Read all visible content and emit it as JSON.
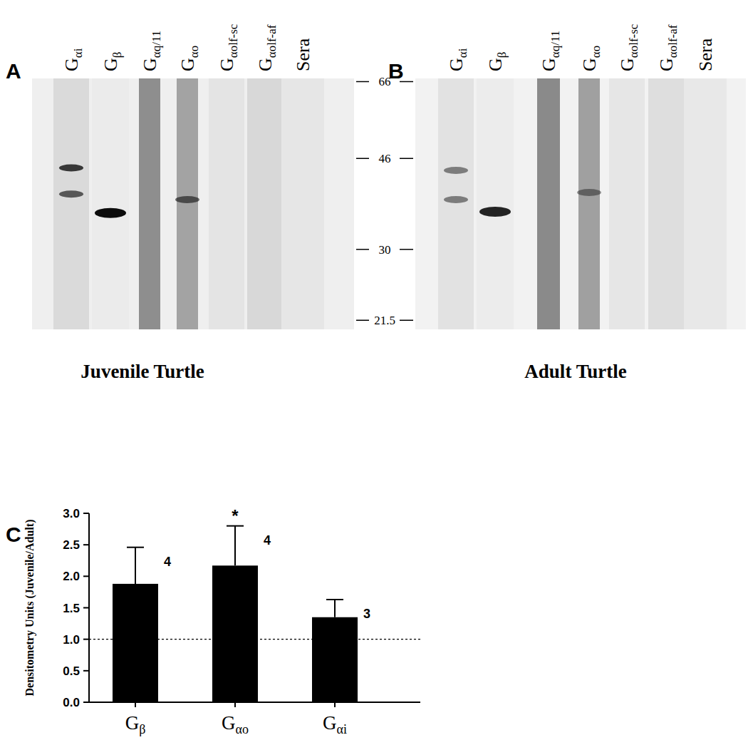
{
  "figure": {
    "markers": [
      66,
      46,
      30,
      21.5
    ],
    "kda_range": [
      67,
      20.6
    ],
    "lanes": [
      {
        "base": "G",
        "sub": "αi"
      },
      {
        "base": "G",
        "sub": "β"
      },
      {
        "base": "G",
        "sub": "αq/11"
      },
      {
        "base": "G",
        "sub": "αo"
      },
      {
        "base": "G",
        "sub": "αolf-sc"
      },
      {
        "base": "G",
        "sub": "αolf-af"
      },
      {
        "base": "Sera"
      }
    ],
    "panels": [
      {
        "letter": "A",
        "title": "Juvenile Turtle",
        "bands": [
          {
            "lane": 0,
            "kda": 44,
            "intensity": 0.75
          },
          {
            "lane": 0,
            "kda": 38.9,
            "intensity": 0.6
          },
          {
            "lane": 1,
            "kda": 35.6,
            "intensity": 0.95
          },
          {
            "lane": 3,
            "kda": 37.9,
            "intensity": 0.55
          }
        ]
      },
      {
        "letter": "B",
        "title": "Adult Turtle",
        "bands": [
          {
            "lane": 0,
            "kda": 43.5,
            "intensity": 0.45
          },
          {
            "lane": 0,
            "kda": 37.9,
            "intensity": 0.45
          },
          {
            "lane": 1,
            "kda": 35.8,
            "intensity": 0.85
          },
          {
            "lane": 3,
            "kda": 39.2,
            "intensity": 0.4
          }
        ]
      }
    ],
    "chart_letter": "C"
  },
  "chart_data": {
    "type": "bar",
    "y_label": "Densitometry Units (Juvenile/Adult)",
    "categories": [
      "Gβ",
      "Gαo",
      "Gαi"
    ],
    "values": [
      1.88,
      2.17,
      1.35
    ],
    "errors": [
      0.58,
      0.63,
      0.28
    ],
    "sample_sizes": [
      4,
      4,
      3
    ],
    "annotations": [
      {
        "index": 1,
        "text": "*"
      }
    ],
    "reference_line": 1,
    "color": "#000000",
    "ylim": [
      0,
      3
    ],
    "yticks": [
      {
        "value": 0,
        "label": "0.0"
      },
      {
        "value": 0.5,
        "label": "0.5"
      },
      {
        "value": 1,
        "label": "1.0"
      },
      {
        "value": 1.5,
        "label": "1.5"
      },
      {
        "value": 2,
        "label": "2.0"
      },
      {
        "value": 2.5,
        "label": "2.5"
      },
      {
        "value": 3,
        "label": "3.0"
      }
    ]
  }
}
